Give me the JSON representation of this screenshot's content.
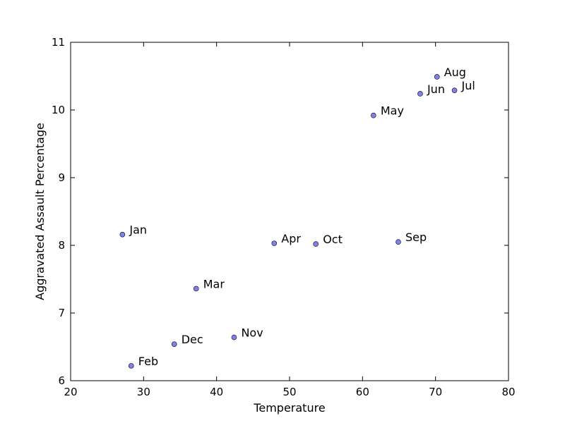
{
  "chart_data": {
    "type": "scatter",
    "xlabel": "Temperature",
    "ylabel": "Aggravated Assault Percentage",
    "xlim": [
      20,
      80
    ],
    "ylim": [
      6,
      11
    ],
    "xticks": [
      20,
      30,
      40,
      50,
      60,
      70,
      80
    ],
    "yticks": [
      6,
      7,
      8,
      9,
      10,
      11
    ],
    "grid": false,
    "marker_color": "#6b6be8",
    "points": [
      {
        "label": "Jan",
        "x": 27.1,
        "y": 8.16
      },
      {
        "label": "Feb",
        "x": 28.3,
        "y": 6.22
      },
      {
        "label": "Mar",
        "x": 37.2,
        "y": 7.36
      },
      {
        "label": "Apr",
        "x": 47.9,
        "y": 8.03
      },
      {
        "label": "May",
        "x": 61.5,
        "y": 9.92
      },
      {
        "label": "Jun",
        "x": 67.9,
        "y": 10.24
      },
      {
        "label": "Jul",
        "x": 72.6,
        "y": 10.29
      },
      {
        "label": "Aug",
        "x": 70.2,
        "y": 10.49
      },
      {
        "label": "Sep",
        "x": 64.9,
        "y": 8.05
      },
      {
        "label": "Oct",
        "x": 53.6,
        "y": 8.02
      },
      {
        "label": "Nov",
        "x": 42.4,
        "y": 6.64
      },
      {
        "label": "Dec",
        "x": 34.2,
        "y": 6.54
      }
    ]
  }
}
